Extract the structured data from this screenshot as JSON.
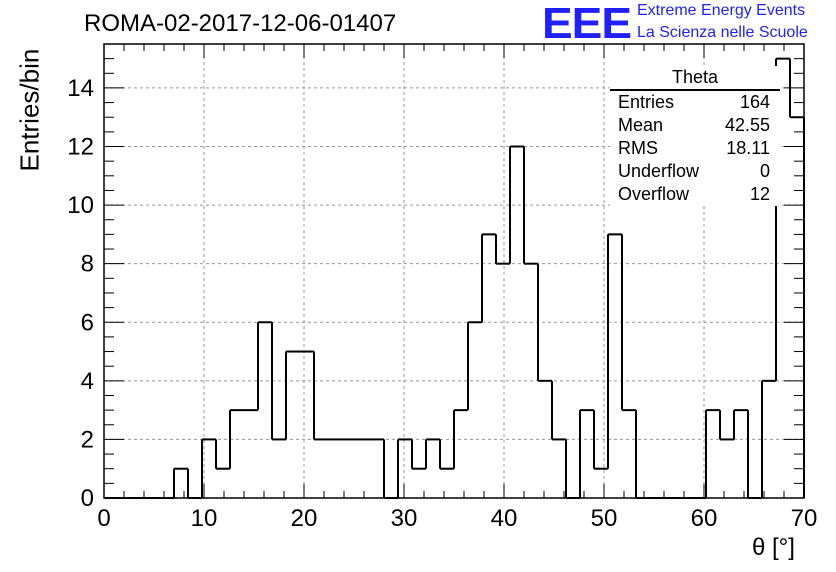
{
  "header": {
    "title": "ROMA-02-2017-12-06-01407",
    "logo_text": "EEE",
    "logo_line1": "Extreme Energy Events",
    "logo_line2": "La Scienza nelle Scuole",
    "logo_color": "#1f1fff"
  },
  "stats_box": {
    "title": "Theta",
    "rows": [
      {
        "label": "Entries",
        "value": "164"
      },
      {
        "label": "Mean",
        "value": "42.55"
      },
      {
        "label": "RMS",
        "value": "18.11"
      },
      {
        "label": "Underflow",
        "value": "0"
      },
      {
        "label": "Overflow",
        "value": "12"
      }
    ]
  },
  "chart_data": {
    "type": "bar",
    "histogram": true,
    "bin_width": 1.4,
    "bin_start": 0,
    "values": [
      0,
      0,
      0,
      0,
      0,
      1,
      0,
      2,
      1,
      3,
      3,
      6,
      2,
      5,
      5,
      2,
      2,
      2,
      2,
      2,
      0,
      2,
      1,
      2,
      1,
      3,
      6,
      9,
      8,
      12,
      8,
      4,
      2,
      0,
      3,
      1,
      9,
      3,
      0,
      0,
      0,
      0,
      0,
      3,
      2,
      3,
      0,
      4,
      15,
      13
    ],
    "xlabel": "θ [°]",
    "ylabel": "Entries/bin",
    "xlim": [
      0,
      70
    ],
    "ylim": [
      0,
      15.5
    ],
    "x_ticks": [
      0,
      10,
      20,
      30,
      40,
      50,
      60,
      70
    ],
    "y_ticks": [
      0,
      2,
      4,
      6,
      8,
      10,
      12,
      14
    ],
    "grid": true,
    "grid_style": "dashed",
    "line_color": "#000000"
  }
}
